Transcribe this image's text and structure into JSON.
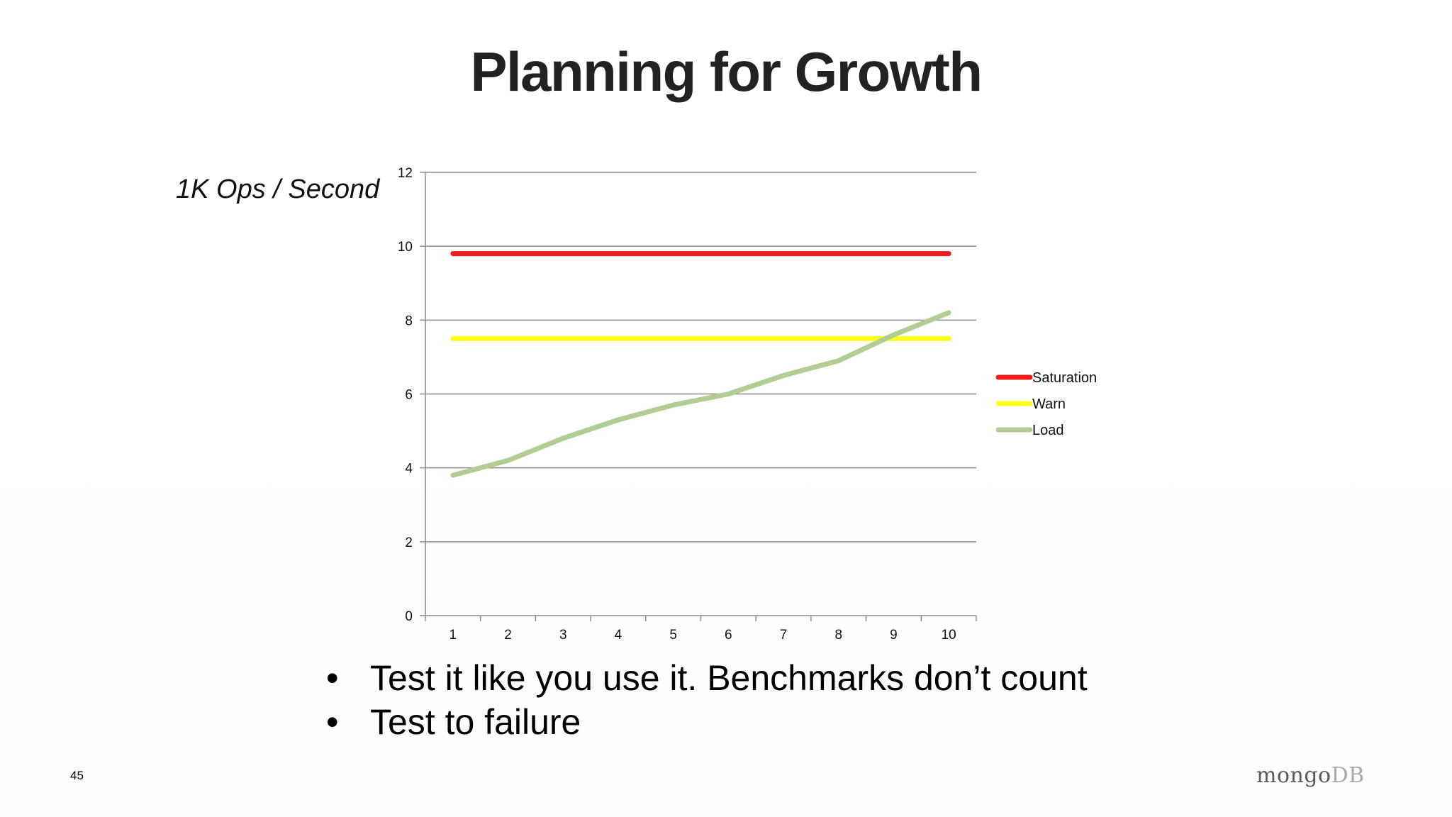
{
  "slide": {
    "title": "Planning for Growth",
    "y_axis_label": "1K Ops / Second",
    "bullets": [
      "Test it like you use it. Benchmarks don’t count",
      "Test to failure"
    ],
    "bullet_glyph": "•",
    "page_number": "45",
    "logo": {
      "part1": "mongo",
      "part2": "DB"
    }
  },
  "chart_data": {
    "type": "line",
    "categories": [
      "1",
      "2",
      "3",
      "4",
      "5",
      "6",
      "7",
      "8",
      "9",
      "10"
    ],
    "ylim": [
      0,
      12
    ],
    "yticks": [
      0,
      2,
      4,
      6,
      8,
      10,
      12
    ],
    "grid": true,
    "legend_position": "right",
    "series": [
      {
        "name": "Saturation",
        "color": "#ee1c1c",
        "values": [
          9.8,
          9.8,
          9.8,
          9.8,
          9.8,
          9.8,
          9.8,
          9.8,
          9.8,
          9.8
        ]
      },
      {
        "name": "Warn",
        "color": "#ffff1a",
        "values": [
          7.5,
          7.5,
          7.5,
          7.5,
          7.5,
          7.5,
          7.5,
          7.5,
          7.5,
          7.5
        ]
      },
      {
        "name": "Load",
        "color": "#b2cd92",
        "values": [
          3.8,
          4.2,
          4.8,
          5.3,
          5.7,
          6.0,
          6.5,
          6.9,
          7.6,
          8.2
        ]
      }
    ]
  }
}
